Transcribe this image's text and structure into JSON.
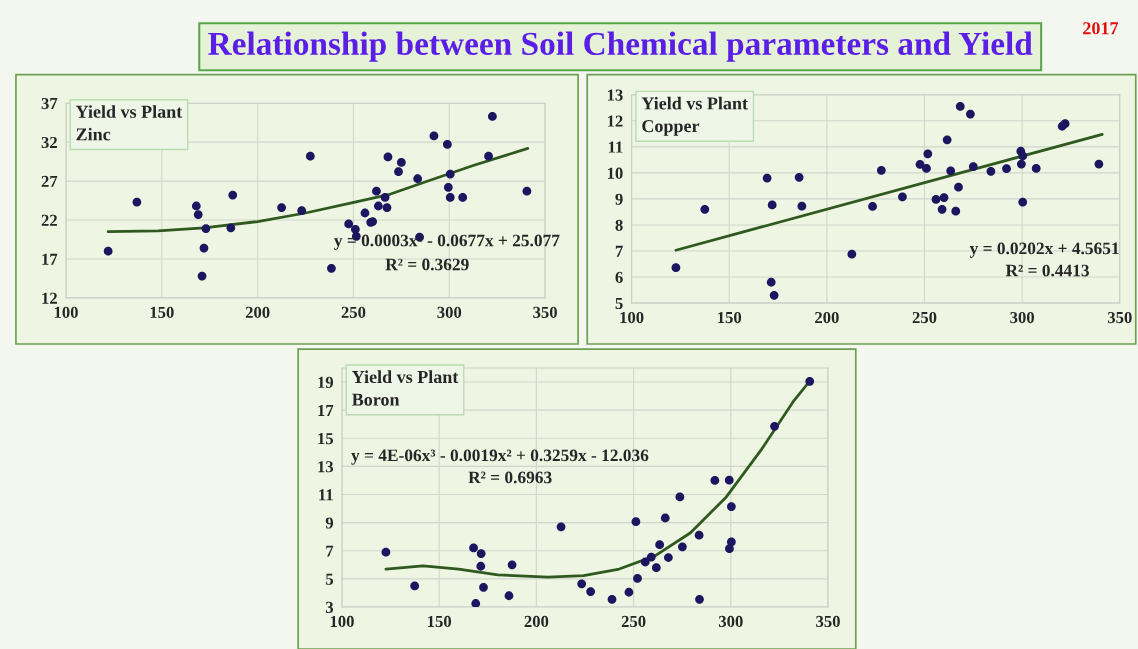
{
  "chart_data": [
    {
      "type": "other",
      "title": "Relationship between Soil Chemical parameters and Yield",
      "annotations": [
        "2017"
      ]
    },
    {
      "type": "scatter",
      "title": "Yield vs Plant Zinc",
      "xlim": [
        100,
        350
      ],
      "ylim": [
        12,
        37
      ],
      "xticks": [
        100,
        150,
        200,
        250,
        300,
        350
      ],
      "yticks": [
        12,
        17,
        22,
        27,
        32,
        37
      ],
      "grid": true,
      "legend": false,
      "annotations": [
        "y = 0.0003x² - 0.0677x + 25.077",
        "R² = 0.3629"
      ],
      "series": [
        {
          "type": "scatter",
          "marker": "circle",
          "color": "#1c1660",
          "x": [
            122,
            137,
            168,
            169,
            173,
            172,
            171,
            186,
            187,
            212.5,
            223,
            227.5,
            238.5,
            247.5,
            251,
            251.5,
            256,
            259,
            260,
            262,
            263,
            266.5,
            267.5,
            268,
            273.5,
            275,
            283.5,
            284.5,
            292,
            299,
            299.5,
            300.5,
            300.5,
            307,
            320.5,
            322.5,
            340.5
          ],
          "values": [
            18.0,
            24.3,
            23.8,
            22.7,
            20.9,
            18.4,
            14.8,
            21.0,
            25.2,
            23.6,
            23.2,
            30.2,
            15.8,
            21.5,
            20.8,
            19.9,
            22.9,
            21.7,
            21.8,
            25.7,
            23.8,
            24.9,
            23.6,
            30.1,
            28.2,
            29.4,
            27.3,
            19.8,
            32.8,
            31.7,
            26.2,
            24.9,
            27.9,
            24.9,
            30.2,
            35.3,
            25.7
          ]
        },
        {
          "type": "line",
          "color": "#2f5a1f",
          "x": [
            122,
            148,
            172,
            200,
            225,
            249,
            269,
            290,
            312.5,
            341
          ],
          "values": [
            20.5,
            20.6,
            21.0,
            21.8,
            22.9,
            24.2,
            25.3,
            27.1,
            29.0,
            31.2
          ]
        }
      ]
    },
    {
      "type": "scatter",
      "title": "Yield vs Plant Copper",
      "xlim": [
        100,
        350
      ],
      "ylim": [
        5,
        13
      ],
      "xticks": [
        100,
        150,
        200,
        250,
        300,
        350
      ],
      "yticks": [
        5,
        6,
        7,
        8,
        9,
        10,
        11,
        12,
        13
      ],
      "grid": true,
      "legend": false,
      "annotations": [
        "y = 0.0202x + 4.5651",
        "R² = 0.4413"
      ],
      "series": [
        {
          "type": "scatter",
          "marker": "circle",
          "color": "#1c1660",
          "x": [
            122.7,
            137.5,
            169.4,
            172,
            171.5,
            173,
            185.8,
            187.2,
            212.8,
            223.4,
            227.9,
            238.7,
            247.7,
            251,
            251.7,
            255.9,
            259,
            260,
            261.6,
            263.4,
            266,
            267.4,
            268.3,
            273.5,
            275,
            284,
            292,
            299.3,
            299.6,
            300.3,
            300.3,
            307.2,
            320.5,
            322,
            339.3
          ],
          "values": [
            6.36,
            8.6,
            9.8,
            8.77,
            5.8,
            5.3,
            9.83,
            8.72,
            6.88,
            8.71,
            10.1,
            9.08,
            10.33,
            10.17,
            10.73,
            8.98,
            8.6,
            9.05,
            11.27,
            10.08,
            8.53,
            9.45,
            12.55,
            12.26,
            10.24,
            10.06,
            10.16,
            10.83,
            10.34,
            10.65,
            8.88,
            10.17,
            11.79,
            11.89,
            10.34
          ]
        },
        {
          "type": "line",
          "color": "#2f5a1f",
          "x": [
            122.7,
            341
          ],
          "values": [
            7.03,
            11.48
          ]
        }
      ]
    },
    {
      "type": "scatter",
      "title": "Yield vs Plant Boron",
      "xlim": [
        100,
        350
      ],
      "ylim": [
        3,
        20
      ],
      "xticks": [
        100,
        150,
        200,
        250,
        300,
        350
      ],
      "yticks": [
        3,
        5,
        7,
        9,
        11,
        13,
        15,
        17,
        19
      ],
      "grid": true,
      "legend": false,
      "annotations": [
        "y = 4E-06x³ - 0.0019x² + 0.3259x - 12.036",
        "R² = 0.6963"
      ],
      "series": [
        {
          "type": "scatter",
          "marker": "circle",
          "color": "#1c1660",
          "x": [
            122.6,
            137.4,
            167.7,
            171.6,
            171.4,
            168.8,
            172.8,
            185.9,
            187.5,
            212.7,
            223.3,
            227.9,
            238.9,
            247.6,
            251.2,
            252,
            256,
            259.1,
            261.7,
            263.4,
            266.3,
            267.9,
            273.8,
            275.1,
            283.7,
            283.9,
            291.8,
            299.2,
            300.3,
            300.3,
            299.3,
            322.5,
            340.6
          ],
          "values": [
            6.9,
            4.5,
            7.2,
            6.8,
            5.9,
            3.25,
            4.4,
            3.8,
            6.0,
            8.7,
            4.65,
            4.1,
            3.55,
            4.05,
            9.07,
            5.03,
            6.2,
            6.55,
            5.8,
            7.43,
            9.33,
            6.52,
            10.83,
            7.28,
            8.11,
            3.55,
            12.0,
            12.02,
            10.14,
            7.63,
            7.15,
            15.85,
            19.05
          ]
        },
        {
          "type": "line",
          "color": "#2f5a1f",
          "x": [
            122.6,
            141.7,
            160,
            180.2,
            206,
            224.3,
            242.6,
            261,
            279.3,
            297.7,
            316,
            332.5,
            339.9
          ],
          "values": [
            5.7,
            5.93,
            5.7,
            5.29,
            5.12,
            5.24,
            5.7,
            6.64,
            8.28,
            10.83,
            14.25,
            17.68,
            18.95
          ]
        }
      ]
    }
  ]
}
